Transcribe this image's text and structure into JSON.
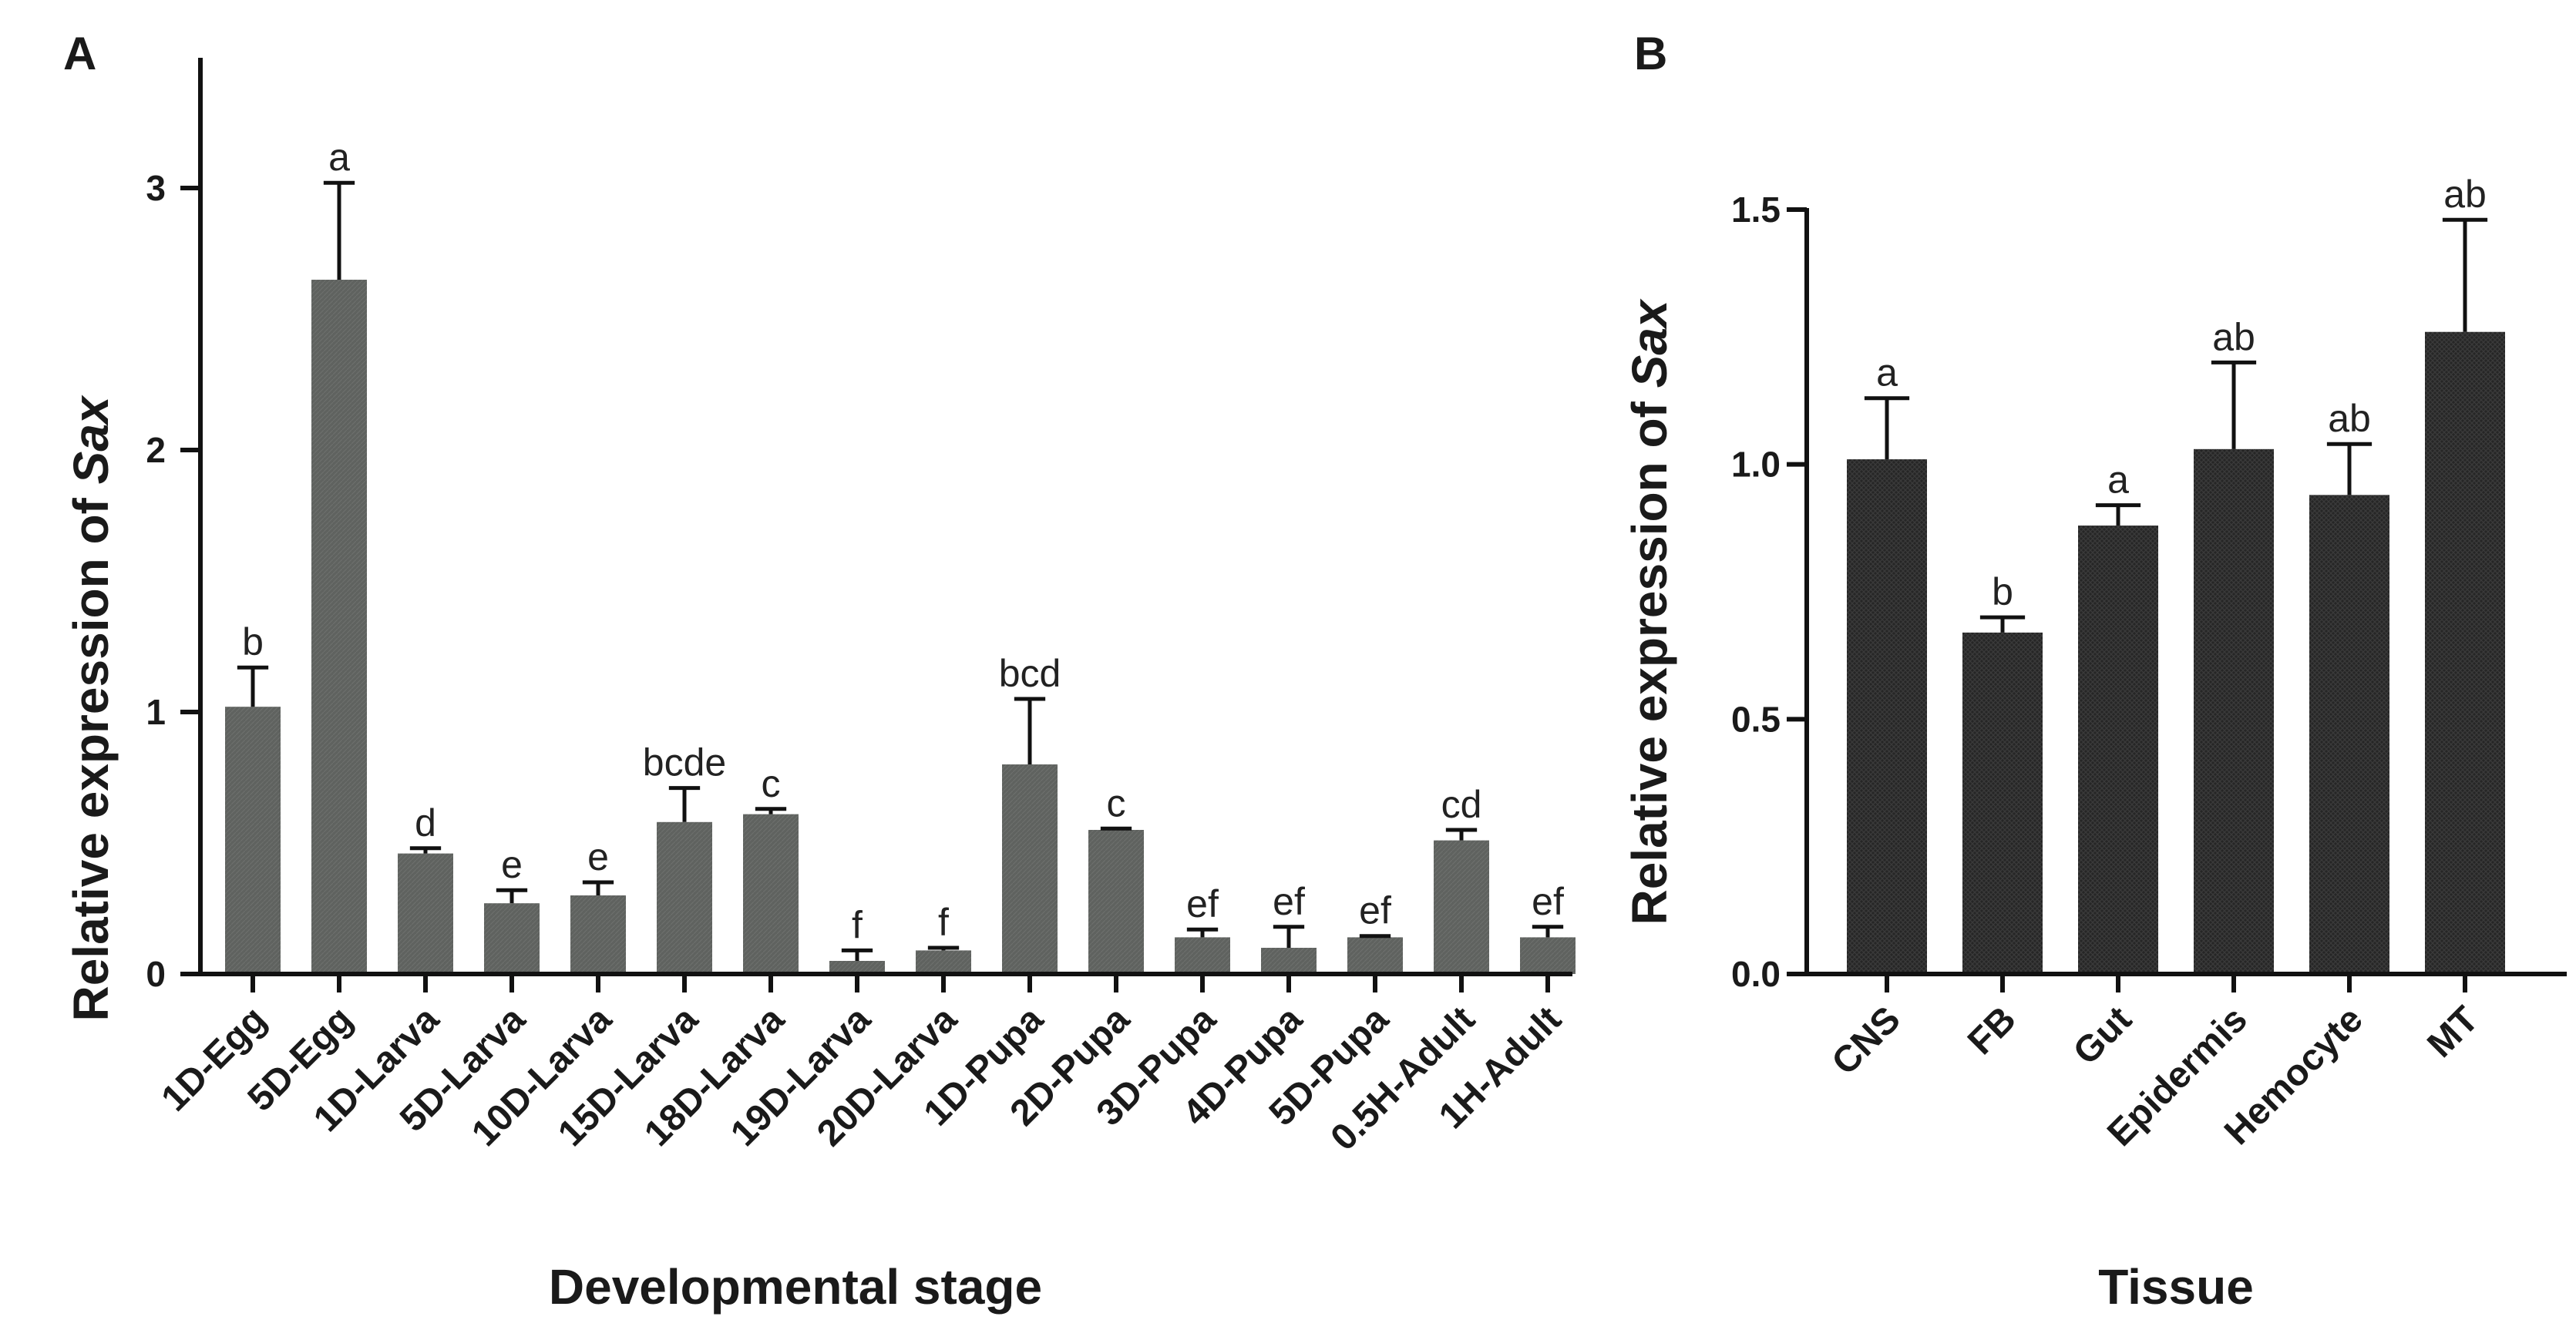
{
  "colors": {
    "panelA_bar": "#5f625f",
    "panelB_bar": "#262626",
    "axis": "#111111",
    "text": "#1a1a1a"
  },
  "chart_data": [
    {
      "panel": "A",
      "type": "bar",
      "xlabel": "Developmental stage",
      "ylabel_prefix": "Relative expression of ",
      "ylabel_gene": "Sax",
      "ylim": [
        0,
        3.5
      ],
      "yticks": [
        0,
        1,
        2,
        3
      ],
      "ytick_labels": [
        "0",
        "1",
        "2",
        "3"
      ],
      "categories": [
        "1D-Egg",
        "5D-Egg",
        "1D-Larva",
        "5D-Larva",
        "10D-Larva",
        "15D-Larva",
        "18D-Larva",
        "19D-Larva",
        "20D-Larva",
        "1D-Pupa",
        "2D-Pupa",
        "3D-Pupa",
        "4D-Pupa",
        "5D-Pupa",
        "0.5H-Adult",
        "1H-Adult"
      ],
      "values": [
        1.02,
        2.65,
        0.46,
        0.27,
        0.3,
        0.58,
        0.61,
        0.05,
        0.09,
        0.8,
        0.55,
        0.14,
        0.1,
        0.14,
        0.51,
        0.14
      ],
      "errors": [
        0.15,
        0.37,
        0.02,
        0.05,
        0.05,
        0.13,
        0.02,
        0.04,
        0.01,
        0.25,
        0.005,
        0.03,
        0.08,
        0.005,
        0.04,
        0.04
      ],
      "significance": [
        "b",
        "a",
        "d",
        "e",
        "e",
        "bcde",
        "c",
        "f",
        "f",
        "bcd",
        "c",
        "ef",
        "ef",
        "ef",
        "cd",
        "ef"
      ]
    },
    {
      "panel": "B",
      "type": "bar",
      "xlabel": "Tissue",
      "ylabel_prefix": "Relative expression of ",
      "ylabel_gene": "Sax",
      "ylim": [
        0,
        1.5
      ],
      "yticks": [
        0,
        0.5,
        1.0,
        1.5
      ],
      "ytick_labels": [
        "0.0",
        "0.5",
        "1.0",
        "1.5"
      ],
      "categories": [
        "CNS",
        "FB",
        "Gut",
        "Epidermis",
        "Hemocyte",
        "MT"
      ],
      "values": [
        1.01,
        0.67,
        0.88,
        1.03,
        0.94,
        1.26
      ],
      "errors": [
        0.12,
        0.03,
        0.04,
        0.17,
        0.1,
        0.22
      ],
      "significance": [
        "a",
        "b",
        "a",
        "ab",
        "ab",
        "ab"
      ]
    }
  ]
}
